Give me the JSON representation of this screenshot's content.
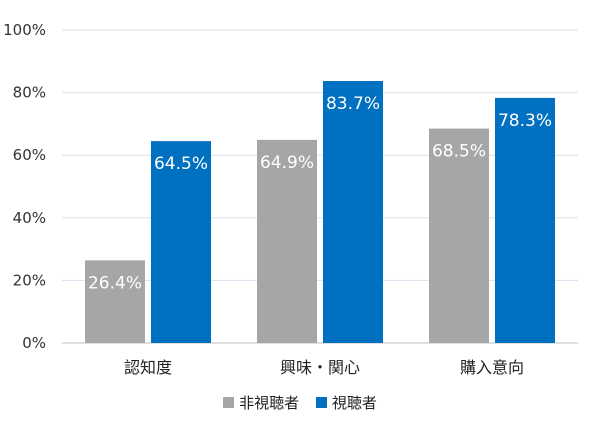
{
  "chart_data": {
    "type": "bar",
    "categories": [
      "認知度",
      "興味・関心",
      "購入意向"
    ],
    "series": [
      {
        "name": "非視聴者",
        "values": [
          26.4,
          64.9,
          68.5
        ],
        "color": "#a6a6a6"
      },
      {
        "name": "視聴者",
        "values": [
          64.5,
          83.7,
          78.3
        ],
        "color": "#0070c0"
      }
    ],
    "ylim": [
      0,
      100
    ],
    "yticks": [
      0,
      20,
      40,
      60,
      80,
      100
    ],
    "ytick_labels": [
      "0%",
      "20%",
      "40%",
      "60%",
      "80%",
      "100%"
    ],
    "data_labels": [
      [
        "26.4%",
        "64.9%",
        "68.5%"
      ],
      [
        "64.5%",
        "83.7%",
        "78.3%"
      ]
    ],
    "grid": true,
    "legend_position": "bottom"
  }
}
